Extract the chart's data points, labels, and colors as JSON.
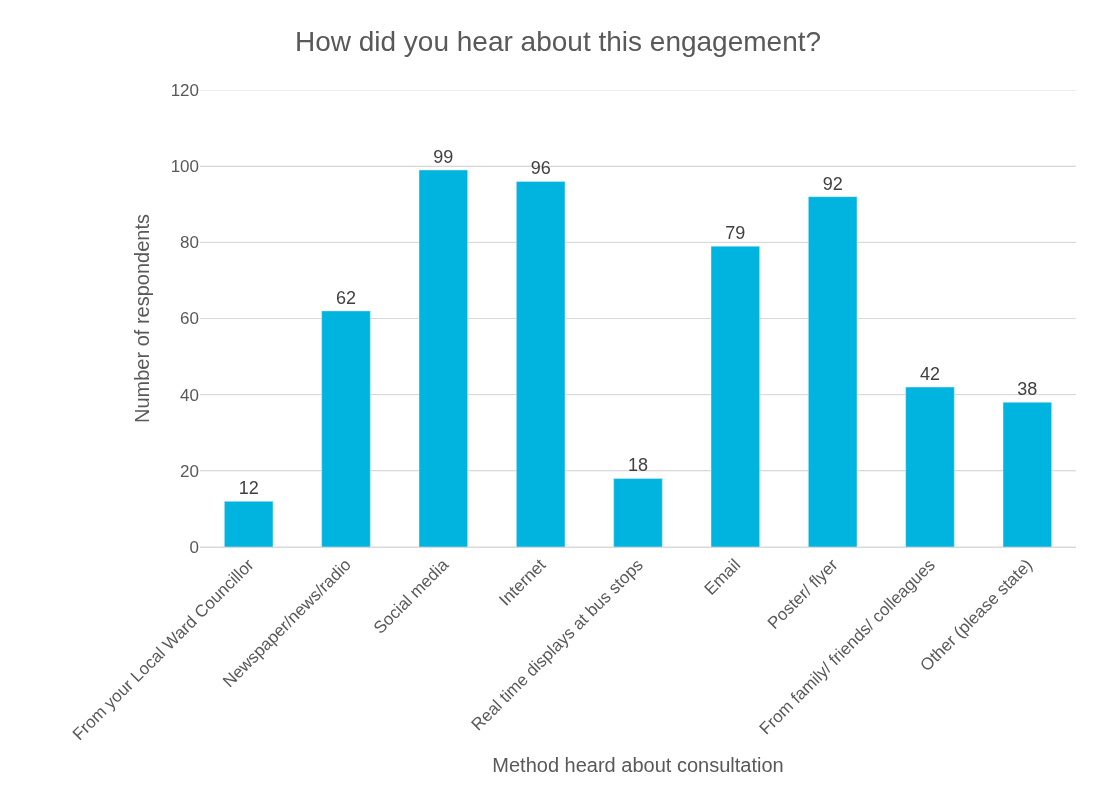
{
  "chart_data": {
    "type": "bar",
    "title": "How did you hear about this engagement?",
    "xlabel": "Method heard about consultation",
    "ylabel": "Number of respondents",
    "categories": [
      "From your Local Ward Councillor",
      "Newspaper/news/radio",
      "Social media",
      "Internet",
      "Real time displays at bus stops",
      "Email",
      "Poster/ flyer",
      "From family/ friends/ colleagues",
      "Other (please state)"
    ],
    "values": [
      12,
      62,
      99,
      96,
      18,
      79,
      92,
      42,
      38
    ],
    "color": "#00b4e0",
    "ylim": [
      0,
      120
    ],
    "yticks": [
      0,
      20,
      40,
      60,
      80,
      100,
      120
    ],
    "grid": "y",
    "data_labels": true,
    "legend": false
  }
}
